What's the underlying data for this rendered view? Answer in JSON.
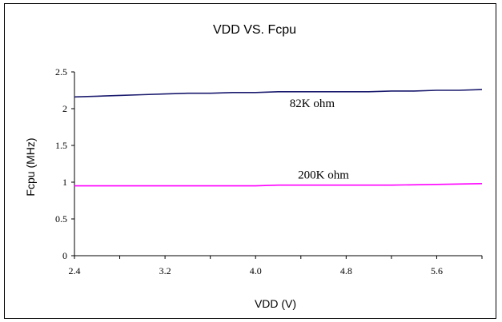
{
  "chart_data": {
    "type": "line",
    "title": "VDD VS. Fcpu",
    "xlabel": "VDD (V)",
    "ylabel": "Fcpu (MHz)",
    "xlim": [
      2.4,
      6.0
    ],
    "ylim": [
      0,
      2.5
    ],
    "xticks": [
      "2.4",
      "3.2",
      "4.0",
      "4.8",
      "5.6"
    ],
    "yticks": [
      "0",
      "0.5",
      "1",
      "1.5",
      "2",
      "2.5"
    ],
    "grid": false,
    "series": [
      {
        "name": "82K ohm",
        "color": "#1a1a6e",
        "x": [
          2.4,
          2.6,
          2.8,
          3.0,
          3.2,
          3.4,
          3.6,
          3.8,
          4.0,
          4.2,
          4.4,
          4.6,
          4.8,
          5.0,
          5.2,
          5.4,
          5.6,
          5.8,
          6.0
        ],
        "y": [
          2.16,
          2.17,
          2.18,
          2.19,
          2.2,
          2.21,
          2.21,
          2.22,
          2.22,
          2.23,
          2.23,
          2.23,
          2.23,
          2.23,
          2.24,
          2.24,
          2.25,
          2.25,
          2.26
        ]
      },
      {
        "name": "200K ohm",
        "color": "#ff00ff",
        "x": [
          2.4,
          2.8,
          3.2,
          3.6,
          4.0,
          4.2,
          4.4,
          4.8,
          5.2,
          5.6,
          6.0
        ],
        "y": [
          0.95,
          0.95,
          0.95,
          0.95,
          0.95,
          0.96,
          0.96,
          0.96,
          0.96,
          0.97,
          0.98
        ]
      }
    ]
  }
}
